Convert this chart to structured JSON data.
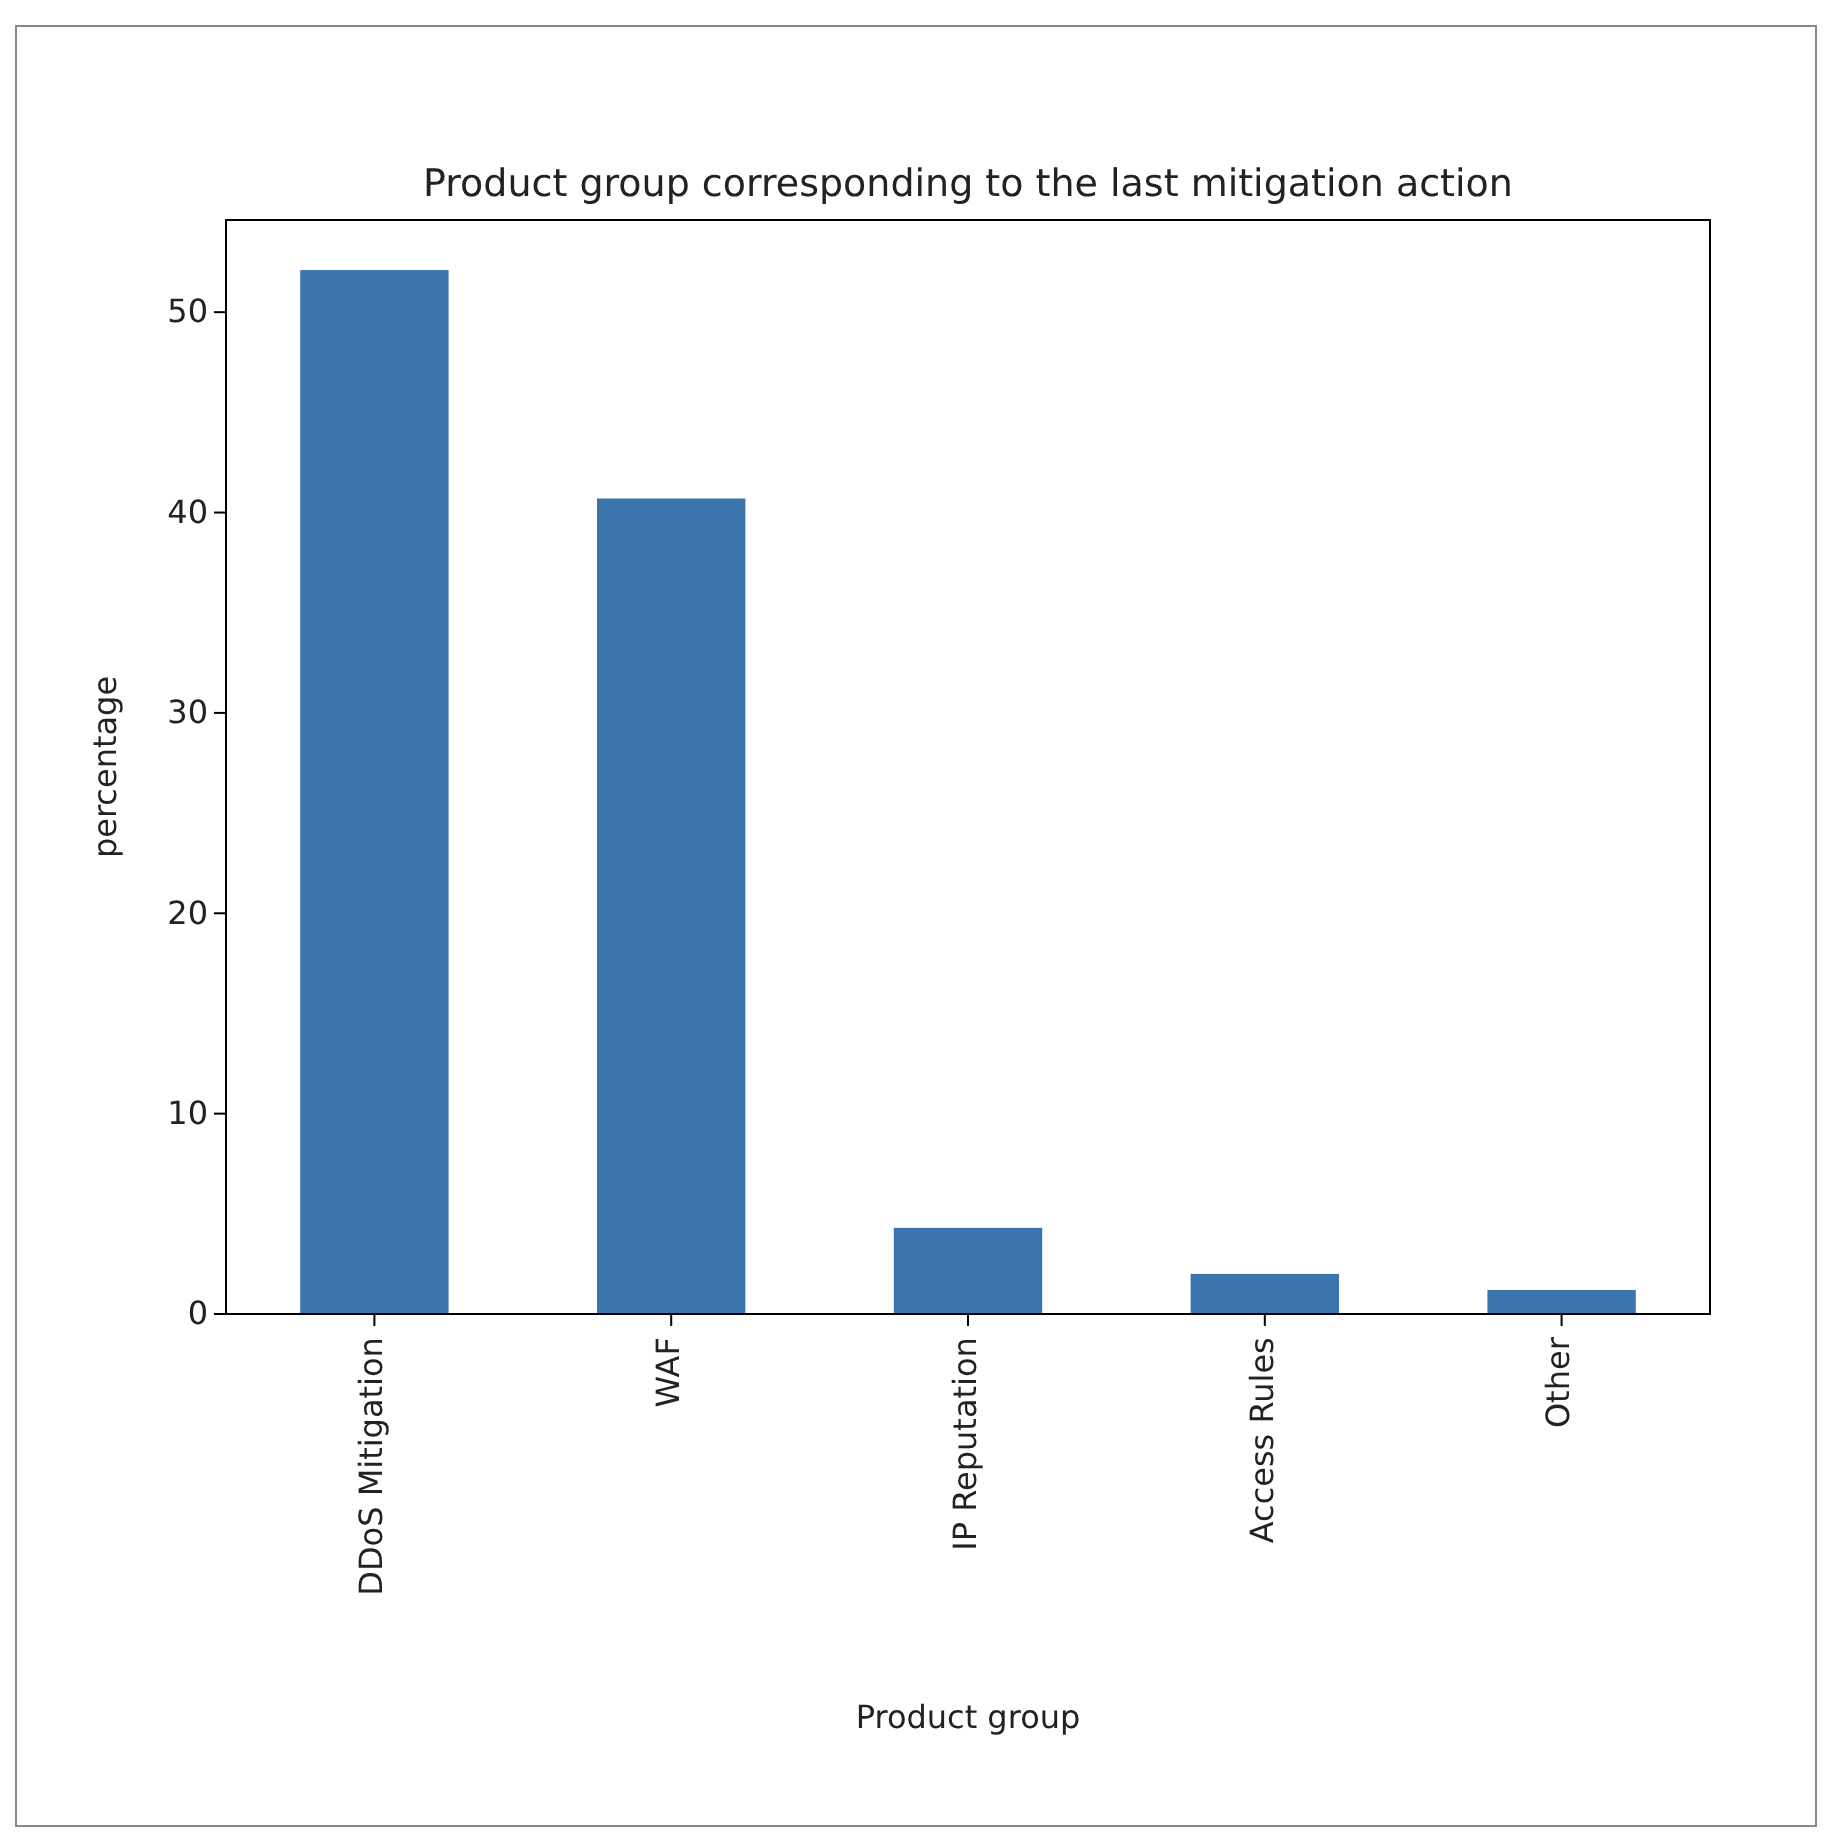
{
  "chart_data": {
    "type": "bar",
    "title": "Product group corresponding to the last mitigation action",
    "xlabel": "Product group",
    "ylabel": "percentage",
    "categories": [
      "DDoS Mitigation",
      "WAF",
      "IP Reputation",
      "Access Rules",
      "Other"
    ],
    "values": [
      52.1,
      40.7,
      4.3,
      2.0,
      1.2
    ],
    "color": "#3a75ae",
    "ylim": [
      0,
      54.6
    ],
    "yticks": [
      0,
      10,
      20,
      30,
      40,
      50
    ]
  }
}
